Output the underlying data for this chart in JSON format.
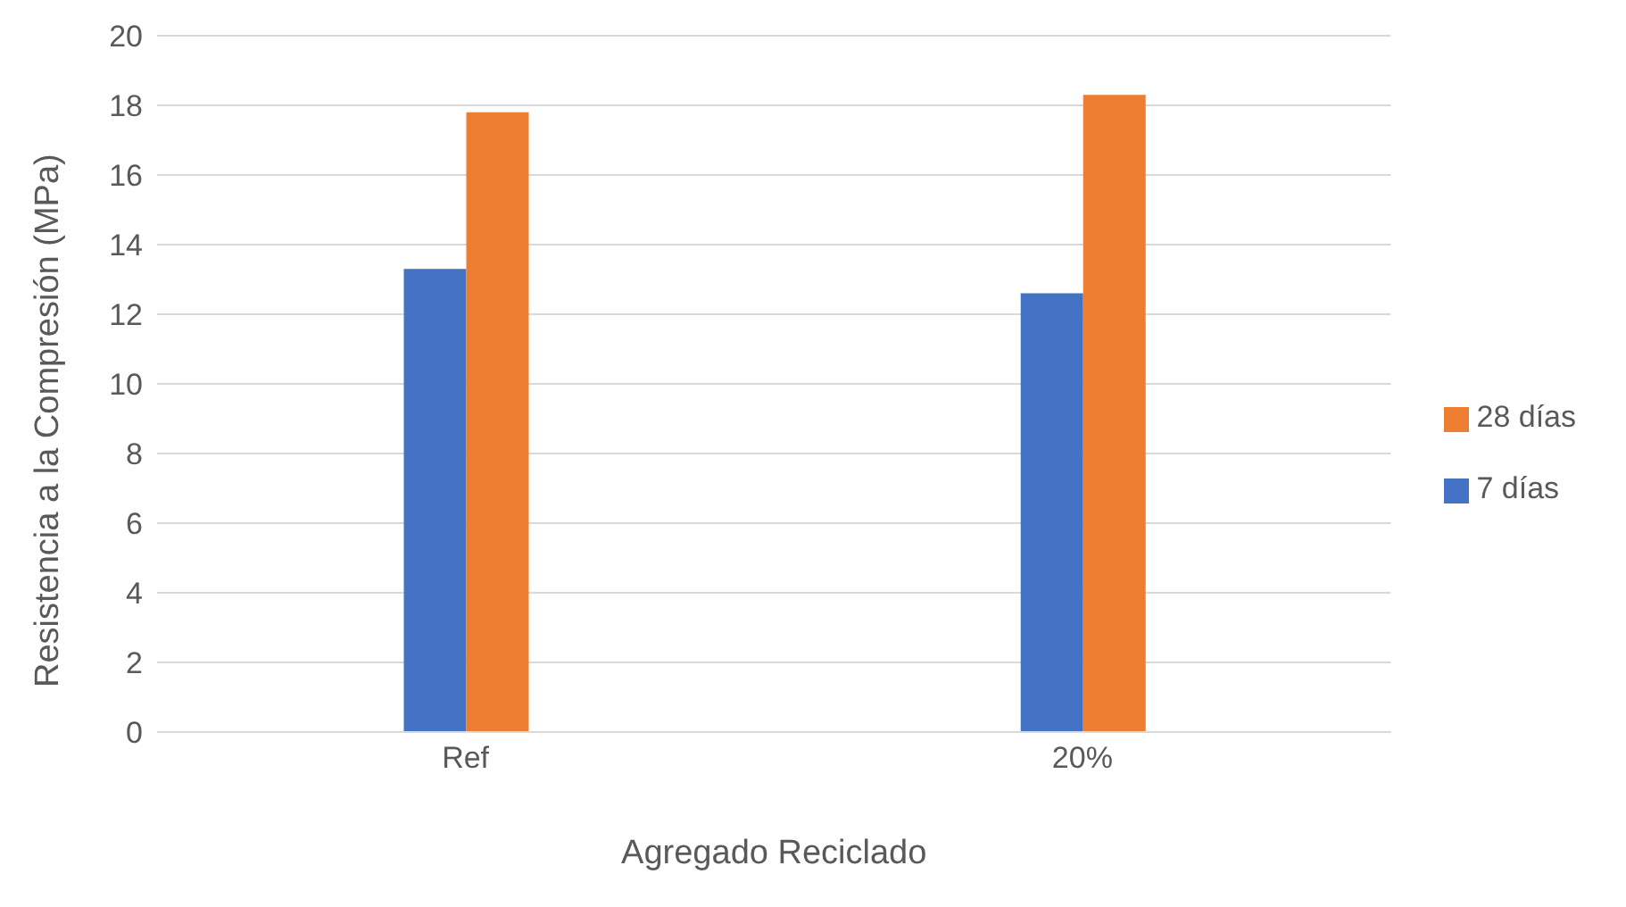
{
  "chart_data": {
    "type": "bar",
    "xlabel": "Agregado Reciclado",
    "ylabel": "Resistencia  a la Compresión  (MPa)",
    "categories": [
      "Ref",
      "20%"
    ],
    "series": [
      {
        "name": "7 días",
        "color": "#4472c4",
        "values": [
          13.3,
          12.6
        ]
      },
      {
        "name": "28 días",
        "color": "#ed7d31",
        "values": [
          17.8,
          18.3
        ]
      }
    ],
    "ylim": [
      0,
      20
    ],
    "yticks": [
      0,
      2,
      4,
      6,
      8,
      10,
      12,
      14,
      16,
      18,
      20
    ],
    "grid": "y",
    "legend": "right"
  }
}
